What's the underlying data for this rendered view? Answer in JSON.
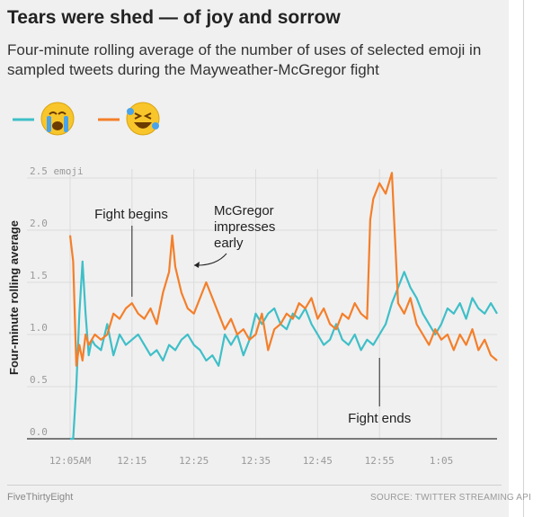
{
  "header": {
    "title": "Tears were shed — of joy and sorrow",
    "subtitle": "Four-minute rolling average of the number of uses of selected emoji in sampled tweets during the Mayweather-McGregor fight"
  },
  "footer": {
    "brand": "FiveThirtyEight",
    "source": "SOURCE: TWITTER STREAMING API"
  },
  "chart_data": {
    "type": "line",
    "ylabel": "Four-minute rolling average",
    "ylim": [
      0,
      2.5
    ],
    "y_ticks": [
      0.0,
      0.5,
      1.0,
      1.5,
      2.0,
      2.5
    ],
    "y_tick_labels": [
      "0.0",
      "0.5",
      "1.0",
      "1.5",
      "2.0",
      "2.5 emoji"
    ],
    "xlim": [
      0,
      69
    ],
    "x_ticks": [
      0,
      10,
      20,
      30,
      40,
      50,
      60
    ],
    "x_tick_labels": [
      "12:05AM",
      "12:15",
      "12:25",
      "12:35",
      "12:45",
      "12:55",
      "1:05"
    ],
    "grid": true,
    "legend_placement": "top-left",
    "series": [
      {
        "emoji": "😭",
        "color": "#3fbfc8",
        "x": [
          0,
          0.5,
          1,
          1.5,
          2,
          2.5,
          3,
          3.5,
          4,
          5,
          6,
          7,
          8,
          9,
          10,
          11,
          12,
          13,
          14,
          15,
          16,
          17,
          18,
          19,
          20,
          21,
          22,
          23,
          24,
          25,
          26,
          27,
          28,
          29,
          30,
          31,
          32,
          33,
          34,
          35,
          36,
          37,
          38,
          39,
          40,
          41,
          42,
          43,
          44,
          45,
          46,
          47,
          48,
          49,
          50,
          51,
          52,
          53,
          54,
          55,
          56,
          57,
          58,
          59,
          60,
          61,
          62,
          63,
          64,
          65,
          66,
          67,
          68,
          69
        ],
        "values": [
          0.0,
          0.0,
          0.5,
          1.2,
          1.7,
          1.2,
          0.8,
          0.95,
          0.9,
          0.85,
          1.1,
          0.8,
          1.0,
          0.9,
          0.95,
          1.0,
          0.9,
          0.8,
          0.85,
          0.75,
          0.9,
          0.85,
          0.95,
          1.0,
          0.9,
          0.85,
          0.75,
          0.8,
          0.7,
          1.0,
          0.9,
          1.0,
          0.8,
          0.95,
          1.2,
          1.1,
          1.2,
          1.25,
          1.1,
          1.05,
          1.2,
          1.15,
          1.25,
          1.1,
          1.0,
          0.9,
          0.95,
          1.1,
          0.95,
          0.9,
          1.0,
          0.85,
          0.95,
          0.9,
          1.0,
          1.1,
          1.3,
          1.45,
          1.6,
          1.45,
          1.35,
          1.2,
          1.1,
          1.0,
          1.1,
          1.25,
          1.2,
          1.3,
          1.15,
          1.35,
          1.25,
          1.2,
          1.3,
          1.2
        ]
      },
      {
        "emoji": "🤣",
        "color": "#f47f2a",
        "x": [
          0,
          0.5,
          1,
          1.5,
          2,
          2.5,
          3,
          3.5,
          4,
          5,
          6,
          7,
          8,
          9,
          10,
          11,
          12,
          13,
          14,
          15,
          16,
          16.5,
          17,
          18,
          19,
          20,
          21,
          22,
          23,
          24,
          25,
          26,
          27,
          28,
          29,
          30,
          31,
          32,
          33,
          34,
          35,
          36,
          37,
          38,
          39,
          40,
          41,
          42,
          43,
          44,
          45,
          46,
          47,
          48,
          48.5,
          49,
          50,
          51,
          52,
          53,
          54,
          55,
          56,
          57,
          58,
          59,
          60,
          61,
          62,
          63,
          64,
          65,
          66,
          67,
          68,
          69
        ],
        "values": [
          1.95,
          1.7,
          0.7,
          0.9,
          0.75,
          1.0,
          0.9,
          0.95,
          1.0,
          0.95,
          1.0,
          1.2,
          1.15,
          1.25,
          1.3,
          1.2,
          1.15,
          1.25,
          1.1,
          1.4,
          1.6,
          1.95,
          1.65,
          1.4,
          1.25,
          1.2,
          1.35,
          1.5,
          1.35,
          1.2,
          1.05,
          1.15,
          1.0,
          1.05,
          0.95,
          1.0,
          1.2,
          0.85,
          1.05,
          1.1,
          1.2,
          1.15,
          1.3,
          1.25,
          1.35,
          1.15,
          1.25,
          1.1,
          1.05,
          1.2,
          1.15,
          1.3,
          1.2,
          1.15,
          2.1,
          2.3,
          2.45,
          2.35,
          2.55,
          1.3,
          1.2,
          1.35,
          1.1,
          1.0,
          0.9,
          1.05,
          0.95,
          1.0,
          0.85,
          1.0,
          0.9,
          1.05,
          0.85,
          0.95,
          0.8,
          0.75
        ]
      }
    ],
    "annotations": [
      {
        "text": "Fight begins",
        "x": 10
      },
      {
        "text": "McGregor impresses early",
        "x": 19
      },
      {
        "text": "Fight ends",
        "x": 50
      }
    ]
  }
}
